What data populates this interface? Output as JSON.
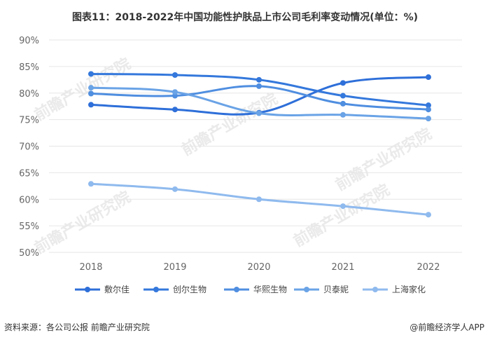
{
  "title": "图表11：2018-2022年中国功能性护肤品上市公司毛利率变动情况(单位：%)",
  "footer": {
    "source": "资料来源：各公司公报 前瞻产业研究院",
    "brand": "@前瞻经济学人APP"
  },
  "watermark": "前瞻产业研究院",
  "chart_data": {
    "type": "line",
    "categories": [
      "2018",
      "2019",
      "2020",
      "2021",
      "2022"
    ],
    "ylim": [
      50,
      90
    ],
    "yticks": [
      "50%",
      "55%",
      "60%",
      "65%",
      "70%",
      "75%",
      "80%",
      "85%",
      "90%"
    ],
    "grid": "horizontal",
    "legend_position": "bottom",
    "series": [
      {
        "name": "敷尔佳",
        "values": [
          77.8,
          76.9,
          76.3,
          81.9,
          83.0
        ],
        "color": "#2e6fd9"
      },
      {
        "name": "创尔生物",
        "values": [
          83.6,
          83.4,
          82.5,
          79.5,
          77.7
        ],
        "color": "#3478dc"
      },
      {
        "name": "华熙生物",
        "values": [
          79.9,
          79.5,
          81.3,
          78.0,
          76.9
        ],
        "color": "#4f8ee0"
      },
      {
        "name": "贝泰妮",
        "values": [
          81.0,
          80.2,
          76.2,
          75.9,
          75.2
        ],
        "color": "#6aa3e6"
      },
      {
        "name": "上海家化",
        "values": [
          62.9,
          61.9,
          60.0,
          58.7,
          57.1
        ],
        "color": "#8fbaee"
      }
    ]
  }
}
